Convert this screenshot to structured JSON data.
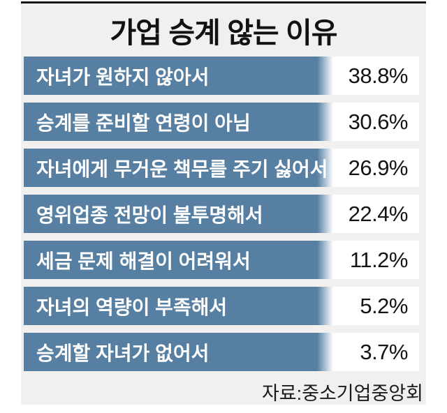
{
  "page": {
    "title": "가업 승계 않는 이유",
    "source": "자료:중소기업중앙회"
  },
  "colors": {
    "bar": "#567fa2",
    "panel_bg": "#f1f0ef",
    "top_rule": "#141414",
    "title_text": "#121212",
    "label_text": "#ffffff",
    "value_text": "#141414",
    "source_text": "#1a1a1a"
  },
  "rows": [
    {
      "label": "자녀가 원하지 않아서",
      "value": "38.8%"
    },
    {
      "label": "승계를 준비할 연령이 아님",
      "value": "30.6%"
    },
    {
      "label": "자녀에게 무거운 책무를 주기 싫어서",
      "value": "26.9%"
    },
    {
      "label": "영위업종 전망이 불투명해서",
      "value": "22.4%"
    },
    {
      "label": "세금 문제 해결이 어려워서",
      "value": "11.2%"
    },
    {
      "label": "자녀의 역량이 부족해서",
      "value": "5.2%"
    },
    {
      "label": "승계할 자녀가 없어서",
      "value": "3.7%"
    }
  ],
  "chart_data": {
    "type": "bar",
    "orientation": "horizontal",
    "title": "가업 승계 않는 이유",
    "categories": [
      "자녀가 원하지 않아서",
      "승계를 준비할 연령이 아님",
      "자녀에게 무거운 책무를 주기 싫어서",
      "영위업종 전망이 불투명해서",
      "세금 문제 해결이 어려워서",
      "자녀의 역량이 부족해서",
      "승계할 자녀가 없어서"
    ],
    "values": [
      38.8,
      30.6,
      26.9,
      22.4,
      11.2,
      5.2,
      3.7
    ],
    "unit": "%",
    "value_labels": [
      "38.8%",
      "30.6%",
      "26.9%",
      "22.4%",
      "11.2%",
      "5.2%",
      "3.7%"
    ],
    "source": "자료:중소기업중앙회",
    "legend": false,
    "grid": false,
    "axes": false,
    "bar_style": "equal-width blue label bands with right-fade and value column on white"
  }
}
